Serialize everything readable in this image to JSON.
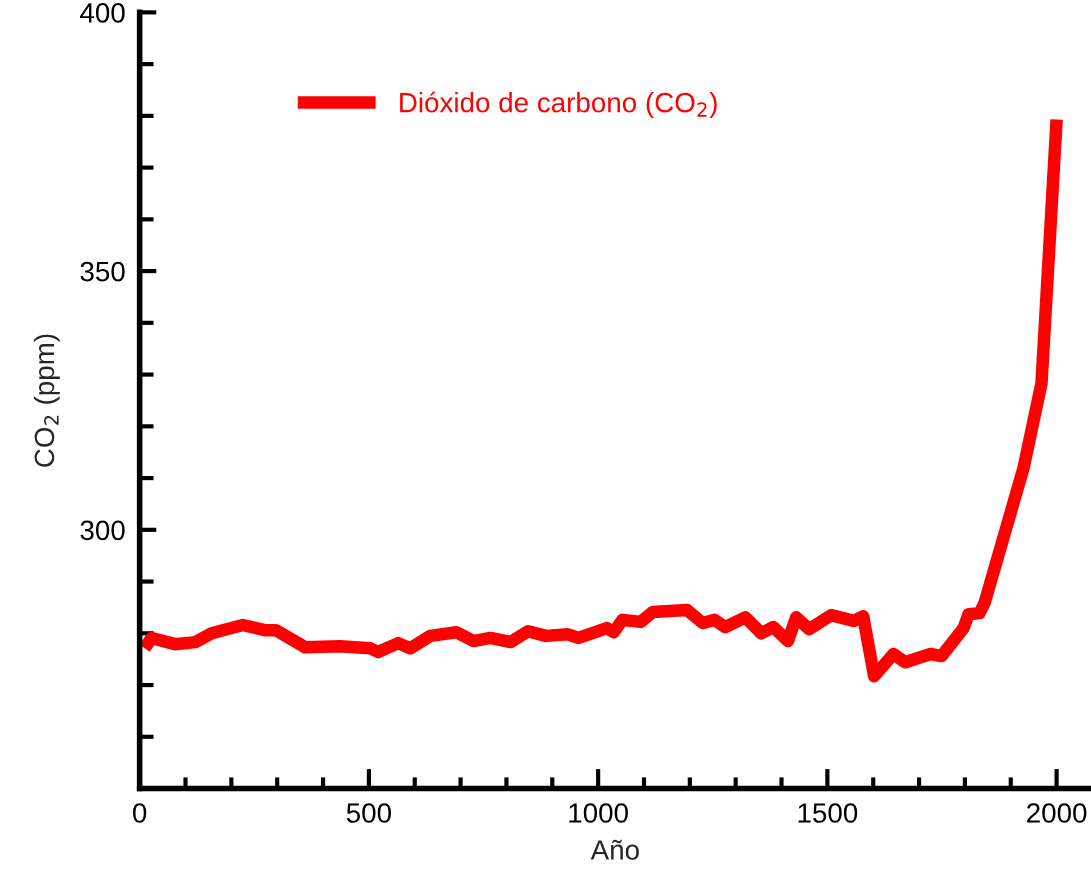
{
  "chart_data": {
    "type": "line",
    "xlabel": "Año",
    "ylabel": "CO$_{2}$ (ppm)",
    "x": [
      11,
      26,
      77,
      122,
      157,
      225,
      273,
      297,
      361,
      437,
      503,
      520,
      564,
      590,
      634,
      691,
      728,
      765,
      809,
      847,
      886,
      934,
      957,
      1019,
      1034,
      1053,
      1093,
      1119,
      1194,
      1228,
      1254,
      1277,
      1321,
      1356,
      1382,
      1414,
      1432,
      1460,
      1508,
      1558,
      1578,
      1602,
      1644,
      1670,
      1725,
      1749,
      1797,
      1808,
      1832,
      1843,
      1928,
      1967,
      2000
    ],
    "series": [
      {
        "name": "Dióxido de carbono (CO$_{2}$)",
        "color": "#ff0000",
        "values": [
          277.1,
          279.1,
          277.9,
          278.3,
          280.0,
          281.6,
          280.6,
          280.6,
          277.3,
          277.5,
          277.1,
          276.4,
          278.1,
          277.1,
          279.5,
          280.2,
          278.5,
          279.1,
          278.3,
          280.4,
          279.5,
          279.8,
          279.1,
          281.0,
          280.2,
          282.6,
          282.2,
          284.1,
          284.5,
          282.0,
          282.6,
          281.2,
          283.1,
          280.0,
          281.2,
          278.5,
          283.1,
          280.8,
          283.5,
          282.4,
          283.3,
          271.7,
          276.0,
          274.4,
          276.0,
          275.6,
          281.0,
          283.7,
          283.9,
          285.9,
          312.0,
          328.3,
          379.3
        ]
      }
    ],
    "xlim": [
      0,
      2075
    ],
    "xticks": [
      0,
      {
        "value": 100,
        "label": null
      },
      {
        "value": 200,
        "label": null
      },
      {
        "value": 300,
        "label": null
      },
      {
        "value": 400,
        "label": null
      },
      500,
      {
        "value": 600,
        "label": null
      },
      {
        "value": 700,
        "label": null
      },
      {
        "value": 800,
        "label": null
      },
      {
        "value": 900,
        "label": null
      },
      1000,
      {
        "value": 1100,
        "label": null
      },
      {
        "value": 1200,
        "label": null
      },
      {
        "value": 1300,
        "label": null
      },
      {
        "value": 1400,
        "label": null
      },
      1500,
      {
        "value": 1600,
        "label": null
      },
      {
        "value": 1700,
        "label": null
      },
      {
        "value": 1800,
        "label": null
      },
      {
        "value": 1900,
        "label": null
      },
      2000
    ],
    "ylim": [
      250,
      400
    ],
    "yticks": [
      {
        "value": 260,
        "label": null
      },
      {
        "value": 270,
        "label": null
      },
      {
        "value": 280,
        "label": null
      },
      {
        "value": 290,
        "label": null
      },
      300,
      {
        "value": 310,
        "label": null
      },
      {
        "value": 320,
        "label": null
      },
      {
        "value": 330,
        "label": null
      },
      {
        "value": 340,
        "label": null
      },
      350,
      {
        "value": 360,
        "label": null
      },
      {
        "value": 370,
        "label": null
      },
      {
        "value": 380,
        "label": null
      },
      {
        "value": 390,
        "label": null
      },
      400
    ],
    "grid": false,
    "legend": "top left",
    "line_style": "solid",
    "marker": "none"
  }
}
